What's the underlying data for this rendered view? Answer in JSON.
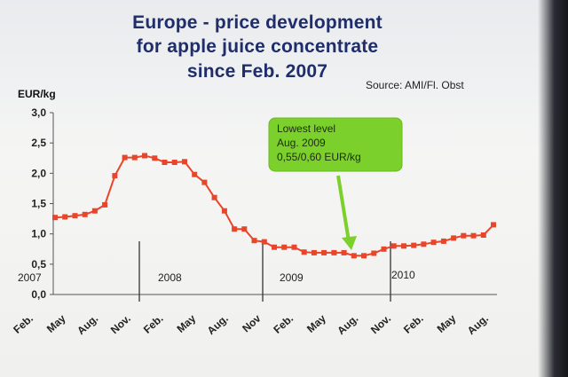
{
  "chart_data": {
    "type": "line",
    "title": "Europe - price development for apple juice concentrate since Feb. 2007",
    "title_lines": [
      "Europe - price development",
      "for apple juice concentrate",
      "since Feb. 2007"
    ],
    "source": "Source: AMI/Fl. Obst",
    "ylabel": "EUR/kg",
    "ylim": [
      0,
      3
    ],
    "yticks": [
      "0,0",
      "0,5",
      "1,0",
      "1,5",
      "2,0",
      "2,5",
      "3,0"
    ],
    "xtick_labels": [
      "Feb.",
      "May",
      "Aug.",
      "Nov.",
      "Feb.",
      "May",
      "Aug.",
      "Nov",
      "Feb.",
      "May",
      "Aug.",
      "Nov.",
      "Feb.",
      "May",
      "Aug."
    ],
    "years": [
      "2007",
      "2008",
      "2009",
      "2010"
    ],
    "series": [
      {
        "color": "#e8452a",
        "values": [
          1.27,
          1.28,
          1.3,
          1.32,
          1.38,
          1.48,
          1.96,
          2.26,
          2.26,
          2.29,
          2.25,
          2.18,
          2.18,
          2.19,
          1.98,
          1.85,
          1.6,
          1.38,
          1.08,
          1.08,
          0.89,
          0.87,
          0.78,
          0.78,
          0.78,
          0.7,
          0.69,
          0.69,
          0.69,
          0.69,
          0.64,
          0.64,
          0.68,
          0.75,
          0.8,
          0.8,
          0.81,
          0.83,
          0.86,
          0.88,
          0.93,
          0.97,
          0.97,
          0.98,
          1.15
        ]
      }
    ],
    "annotation": {
      "lines": [
        "Lowest level",
        "Aug. 2009",
        "0,55/0,60 EUR/kg"
      ],
      "color": "#7cd02b"
    },
    "grid": false,
    "legend": "none"
  }
}
